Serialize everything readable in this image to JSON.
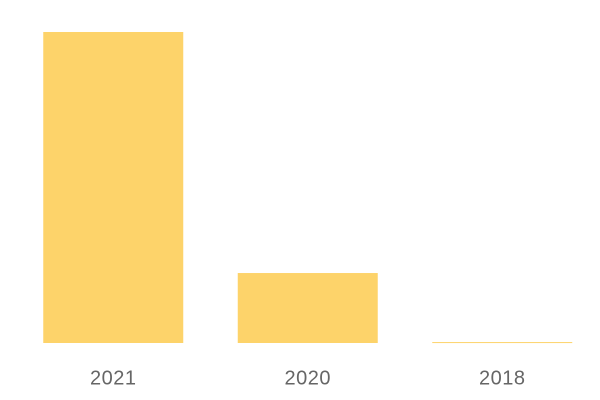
{
  "chart_data": {
    "type": "bar",
    "categories": [
      "2021",
      "2020",
      "2018"
    ],
    "values": [
      100,
      22.5,
      0.3
    ],
    "color": "#fdd36a"
  }
}
